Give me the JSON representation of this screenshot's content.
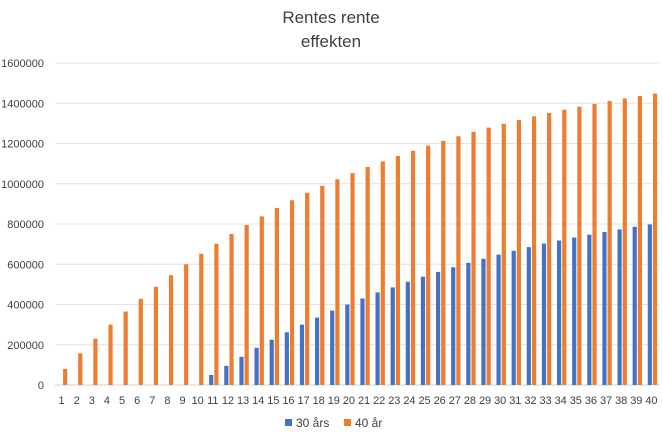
{
  "chart_data": {
    "type": "bar",
    "title_lines": [
      "Rentes rente",
      "effekten"
    ],
    "xlabel": "",
    "ylabel": "",
    "ylim": [
      0,
      1600000
    ],
    "yticks": [
      "0",
      "200000",
      "400000",
      "600000",
      "800000",
      "1000000",
      "1200000",
      "1400000",
      "1600000"
    ],
    "grid": true,
    "legend_position": "bottom",
    "categories": [
      "1",
      "2",
      "3",
      "4",
      "5",
      "6",
      "7",
      "8",
      "9",
      "10",
      "11",
      "12",
      "13",
      "14",
      "15",
      "16",
      "17",
      "18",
      "19",
      "20",
      "21",
      "22",
      "23",
      "24",
      "25",
      "26",
      "27",
      "28",
      "29",
      "30",
      "31",
      "32",
      "33",
      "34",
      "35",
      "36",
      "37",
      "38",
      "39",
      "40"
    ],
    "series": [
      {
        "name": "30 års",
        "color": "#4472C4",
        "values": [
          0,
          0,
          0,
          0,
          0,
          0,
          0,
          0,
          0,
          0,
          50000,
          95000,
          140000,
          185000,
          225000,
          262000,
          300000,
          335000,
          370000,
          400000,
          430000,
          460000,
          485000,
          513000,
          538000,
          562000,
          585000,
          607000,
          627000,
          648000,
          667000,
          685000,
          703000,
          718000,
          733000,
          747000,
          760000,
          773000,
          786000,
          798000
        ]
      },
      {
        "name": "40 år",
        "color": "#ED7D31",
        "values": [
          80000,
          157000,
          230000,
          300000,
          365000,
          428000,
          488000,
          546000,
          600000,
          652000,
          702000,
          750000,
          795000,
          838000,
          880000,
          918000,
          955000,
          990000,
          1022000,
          1053000,
          1083000,
          1111000,
          1138000,
          1164000,
          1189000,
          1213000,
          1236000,
          1258000,
          1279000,
          1298000,
          1317000,
          1335000,
          1352000,
          1368000,
          1383000,
          1397000,
          1411000,
          1424000,
          1436000,
          1448000
        ]
      }
    ]
  }
}
